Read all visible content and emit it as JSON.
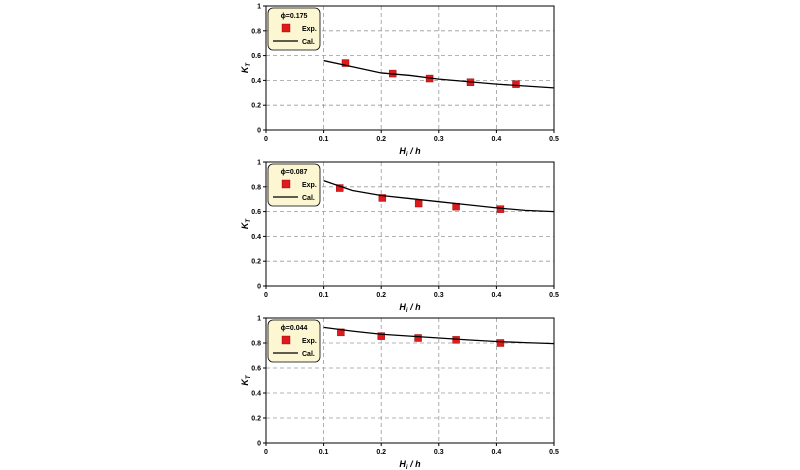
{
  "chart_data": [
    {
      "type": "scatter",
      "legend_title": "ϕ=0.175",
      "xlabel": {
        "main": "H",
        "sub": "i",
        "rest": " / h"
      },
      "ylabel": {
        "main": "K",
        "sub": "T"
      },
      "xlim": [
        0,
        0.5
      ],
      "ylim": [
        0,
        1
      ],
      "x_ticks": [
        "0",
        "0.1",
        "0.2",
        "0.3",
        "0.4",
        "0.5"
      ],
      "y_ticks": [
        "0",
        "0.2",
        "0.4",
        "0.6",
        "0.8",
        "1"
      ],
      "grid": true,
      "legend_position": "top-left",
      "series": [
        {
          "name": "Exp.",
          "kind": "marker",
          "color": "#e0191c",
          "x": [
            0.138,
            0.22,
            0.284,
            0.355,
            0.434
          ],
          "y": [
            0.54,
            0.455,
            0.415,
            0.385,
            0.37
          ]
        },
        {
          "name": "Cal.",
          "kind": "line",
          "color": "#000000",
          "x": [
            0.1,
            0.15,
            0.2,
            0.25,
            0.3,
            0.35,
            0.4,
            0.45,
            0.5
          ],
          "y": [
            0.56,
            0.51,
            0.46,
            0.44,
            0.41,
            0.39,
            0.37,
            0.355,
            0.34
          ]
        }
      ]
    },
    {
      "type": "scatter",
      "legend_title": "ϕ=0.087",
      "xlabel": {
        "main": "H",
        "sub": "i",
        "rest": " / h"
      },
      "ylabel": {
        "main": "K",
        "sub": "T"
      },
      "xlim": [
        0,
        0.5
      ],
      "ylim": [
        0,
        1
      ],
      "x_ticks": [
        "0",
        "0.1",
        "0.2",
        "0.3",
        "0.4",
        "0.5"
      ],
      "y_ticks": [
        "0",
        "0.2",
        "0.4",
        "0.6",
        "0.8",
        "1"
      ],
      "grid": true,
      "legend_position": "top-left",
      "series": [
        {
          "name": "Exp.",
          "kind": "marker",
          "color": "#e0191c",
          "x": [
            0.128,
            0.202,
            0.265,
            0.33,
            0.407
          ],
          "y": [
            0.79,
            0.71,
            0.665,
            0.64,
            0.62
          ]
        },
        {
          "name": "Cal.",
          "kind": "line",
          "color": "#000000",
          "x": [
            0.1,
            0.15,
            0.2,
            0.25,
            0.3,
            0.35,
            0.4,
            0.45,
            0.5
          ],
          "y": [
            0.85,
            0.77,
            0.73,
            0.705,
            0.68,
            0.655,
            0.63,
            0.61,
            0.6
          ]
        }
      ]
    },
    {
      "type": "scatter",
      "legend_title": "ϕ=0.044",
      "xlabel": {
        "main": "H",
        "sub": "i",
        "rest": " / h"
      },
      "ylabel": {
        "main": "K",
        "sub": "T"
      },
      "xlim": [
        0,
        0.5
      ],
      "ylim": [
        0,
        1
      ],
      "x_ticks": [
        "0",
        "0.1",
        "0.2",
        "0.3",
        "0.4",
        "0.5"
      ],
      "y_ticks": [
        "0",
        "0.2",
        "0.4",
        "0.6",
        "0.8",
        "1"
      ],
      "grid": true,
      "legend_position": "top-left",
      "series": [
        {
          "name": "Exp.",
          "kind": "marker",
          "color": "#e0191c",
          "x": [
            0.13,
            0.2,
            0.264,
            0.33,
            0.407
          ],
          "y": [
            0.885,
            0.855,
            0.84,
            0.825,
            0.8
          ]
        },
        {
          "name": "Cal.",
          "kind": "line",
          "color": "#000000",
          "x": [
            0.1,
            0.15,
            0.2,
            0.25,
            0.3,
            0.35,
            0.4,
            0.45,
            0.5
          ],
          "y": [
            0.925,
            0.895,
            0.87,
            0.855,
            0.84,
            0.825,
            0.812,
            0.803,
            0.795
          ]
        }
      ]
    }
  ],
  "style": {
    "legend_bg": "#fcf7d2",
    "legend_border": "#000000",
    "grid_color": "#9a9a9a"
  }
}
